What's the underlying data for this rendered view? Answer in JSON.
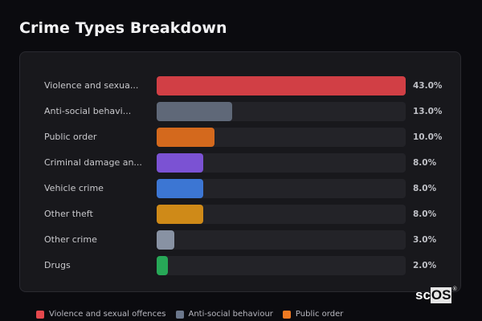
{
  "title": "Crime Types Breakdown",
  "chart_data": {
    "type": "bar",
    "orientation": "horizontal",
    "title": "Crime Types Breakdown",
    "categories": [
      "Violence and sexual offences",
      "Anti-social behaviour",
      "Public order",
      "Criminal damage and arson",
      "Vehicle crime",
      "Other theft",
      "Other crime",
      "Drugs"
    ],
    "display_labels": [
      "Violence and sexua...",
      "Anti-social behavi...",
      "Public order",
      "Criminal damage an...",
      "Vehicle crime",
      "Other theft",
      "Other crime",
      "Drugs"
    ],
    "values": [
      43.0,
      13.0,
      10.0,
      8.0,
      8.0,
      8.0,
      3.0,
      2.0
    ],
    "value_labels": [
      "43.0%",
      "13.0%",
      "10.0%",
      "8.0%",
      "8.0%",
      "8.0%",
      "3.0%",
      "2.0%"
    ],
    "colors": [
      "#d13f45",
      "#5f6878",
      "#d4691d",
      "#7b52d3",
      "#3c76d3",
      "#cf8a18",
      "#8892a3",
      "#27a857"
    ],
    "xlim": [
      0,
      43
    ],
    "legend_position": "bottom",
    "grid": false
  },
  "legend": [
    {
      "label": "Violence and sexual offences",
      "color": "#e5484d"
    },
    {
      "label": "Anti-social behaviour",
      "color": "#6b778c"
    },
    {
      "label": "Public order",
      "color": "#f07a22"
    }
  ],
  "logo": {
    "main": "sc",
    "boxed": "OS",
    "mark": "®"
  }
}
